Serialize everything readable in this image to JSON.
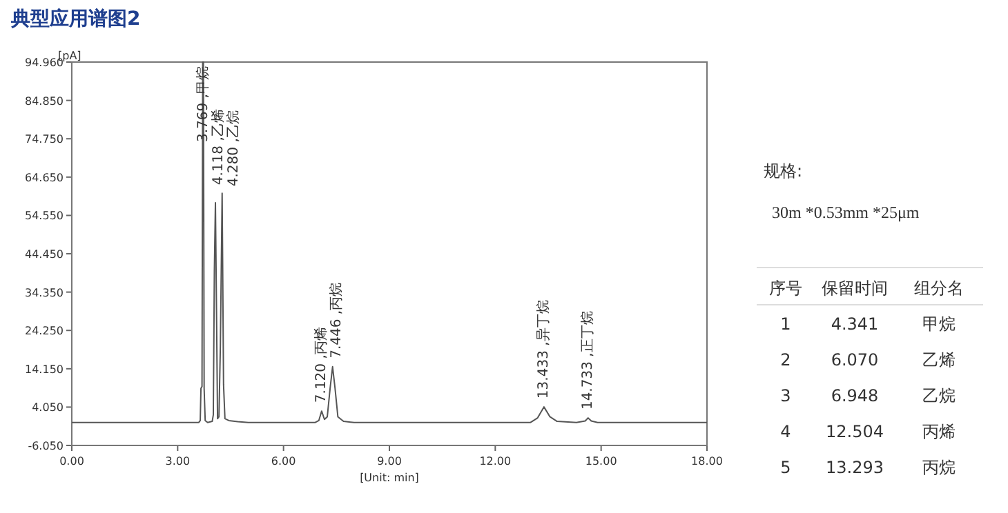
{
  "chart_data": {
    "type": "line",
    "title": "典型应用谱图2",
    "ylabel": "[pA]",
    "xlabel": "[Unit: min]",
    "xlim": [
      0,
      18
    ],
    "xticks": [
      {
        "value": 0,
        "label": "0.00"
      },
      {
        "value": 3,
        "label": "3.00"
      },
      {
        "value": 6,
        "label": "6.00"
      },
      {
        "value": 9,
        "label": "9.00"
      },
      {
        "value": 12,
        "label": "12.00"
      },
      {
        "value": 15,
        "label": "15.00"
      },
      {
        "value": 18,
        "label": "18.00"
      }
    ],
    "ylim": [
      -6.05,
      94.96
    ],
    "yticks": [
      {
        "value": -6.05,
        "label": "-6.050"
      },
      {
        "value": 4.05,
        "label": "4.050"
      },
      {
        "value": 14.15,
        "label": "14.150"
      },
      {
        "value": 24.25,
        "label": "24.250"
      },
      {
        "value": 34.35,
        "label": "34.350"
      },
      {
        "value": 44.45,
        "label": "44.450"
      },
      {
        "value": 54.55,
        "label": "54.550"
      },
      {
        "value": 64.65,
        "label": "64.650"
      },
      {
        "value": 74.75,
        "label": "74.750"
      },
      {
        "value": 84.85,
        "label": "84.850"
      },
      {
        "value": 94.96,
        "label": "94.960"
      }
    ],
    "series": [
      {
        "color": "#555555",
        "x": [
          0,
          3.6,
          3.64,
          3.66,
          3.69,
          3.71,
          3.73,
          3.75,
          3.78,
          3.85,
          3.98,
          4.01,
          4.04,
          4.07,
          4.1,
          4.13,
          4.17,
          4.21,
          4.26,
          4.3,
          4.34,
          4.45,
          4.7,
          5,
          6.9,
          7.0,
          7.08,
          7.16,
          7.24,
          7.32,
          7.39,
          7.46,
          7.54,
          7.7,
          8,
          13.0,
          13.2,
          13.38,
          13.55,
          13.75,
          14.3,
          14.55,
          14.63,
          14.72,
          14.9,
          18
        ],
        "values": [
          0,
          0,
          0.5,
          9,
          9.5,
          94.96,
          94.96,
          9,
          0.5,
          0,
          0.3,
          2,
          40,
          57.9,
          30,
          1,
          1.5,
          20,
          60.4,
          10,
          1,
          0.5,
          0.2,
          0,
          0,
          0.5,
          3.0,
          0.8,
          1.5,
          9,
          14.7,
          9,
          1.5,
          0.3,
          0,
          0,
          1.2,
          4.1,
          1.5,
          0.3,
          0,
          0.4,
          1.2,
          0.4,
          0,
          0
        ]
      }
    ],
    "annotations": [
      {
        "text": "3.769 ,甲烷",
        "x": 3.72,
        "y": 94.96
      },
      {
        "text": "4.118 ,乙烯",
        "x": 4.07,
        "y": 57.9
      },
      {
        "text": "4.280 ,乙烷",
        "x": 4.26,
        "y": 60.4
      },
      {
        "text": "7.120 ,丙烯",
        "x": 7.08,
        "y": 3.0
      },
      {
        "text": "7.446 ,丙烷",
        "x": 7.39,
        "y": 14.7
      },
      {
        "text": "13.433 ,异丁烷",
        "x": 13.38,
        "y": 4.1
      },
      {
        "text": "14.733 ,正丁烷",
        "x": 14.63,
        "y": 1.2
      },
      "规格:",
      "30m *0.53mm *25μm",
      "序号",
      "保留时间",
      "组分名",
      "1",
      "4.341",
      "甲烷",
      "2",
      "6.070",
      "乙烯",
      "3",
      "6.948",
      "乙烷",
      "4",
      "12.504",
      "丙烯",
      "5",
      "13.293",
      "丙烷"
    ]
  }
}
